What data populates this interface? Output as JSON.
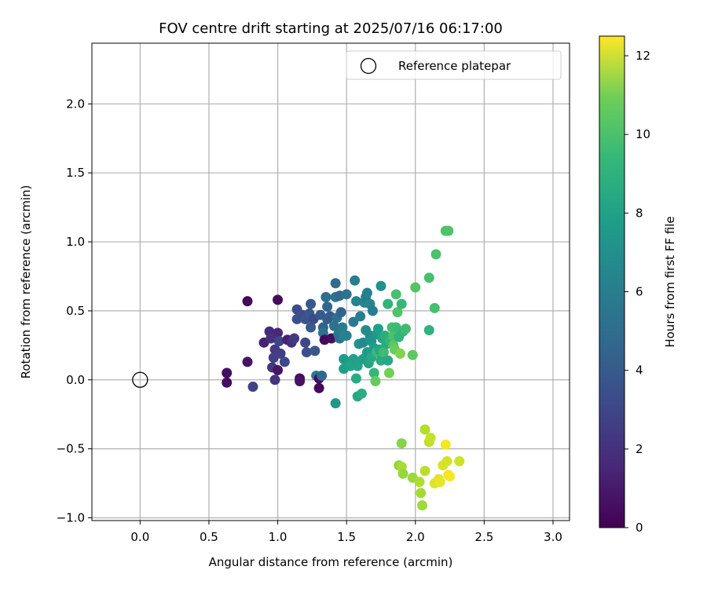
{
  "chart_data": {
    "type": "scatter",
    "title": "FOV centre drift starting at 2025/07/16 06:17:00",
    "xlabel": "Angular distance from reference (arcmin)",
    "ylabel": "Rotation from reference (arcmin)",
    "xlim": [
      -0.35,
      3.12
    ],
    "ylim": [
      -1.02,
      2.44
    ],
    "xticks": [
      0.0,
      0.5,
      1.0,
      1.5,
      2.0,
      2.5,
      3.0
    ],
    "xtick_labels": [
      "0.0",
      "0.5",
      "1.0",
      "1.5",
      "2.0",
      "2.5",
      "3.0"
    ],
    "yticks": [
      -1.0,
      -0.5,
      0.0,
      0.5,
      1.0,
      1.5,
      2.0
    ],
    "ytick_labels": [
      "−1.0",
      "−0.5",
      "0.0",
      "0.5",
      "1.0",
      "1.5",
      "2.0"
    ],
    "grid": true,
    "legend": {
      "position": "top-right",
      "entries": [
        "Reference platepar"
      ]
    },
    "reference_point": {
      "x": 0.0,
      "y": 0.0
    },
    "colorbar": {
      "label": "Hours from first FF file",
      "range": [
        0,
        12.5
      ],
      "ticks": [
        0,
        2,
        4,
        6,
        8,
        10,
        12
      ],
      "tick_labels": [
        "0",
        "2",
        "4",
        "6",
        "8",
        "10",
        "12"
      ],
      "colormap": "viridis"
    },
    "points": [
      {
        "x": 0.63,
        "y": 0.05,
        "h": 0.5
      },
      {
        "x": 0.63,
        "y": -0.02,
        "h": 0.4
      },
      {
        "x": 0.78,
        "y": 0.57,
        "h": 0.3
      },
      {
        "x": 0.78,
        "y": 0.13,
        "h": 0.6
      },
      {
        "x": 0.82,
        "y": -0.05,
        "h": 2.5
      },
      {
        "x": 0.9,
        "y": 0.27,
        "h": 1.2
      },
      {
        "x": 0.94,
        "y": 0.35,
        "h": 1.5
      },
      {
        "x": 0.95,
        "y": 0.3,
        "h": 1.8
      },
      {
        "x": 0.96,
        "y": 0.09,
        "h": 2.0
      },
      {
        "x": 0.97,
        "y": 0.16,
        "h": 2.3
      },
      {
        "x": 0.98,
        "y": 0.22,
        "h": 2.2
      },
      {
        "x": 0.98,
        "y": 0.0,
        "h": 1.9
      },
      {
        "x": 1.0,
        "y": 0.58,
        "h": 0.4
      },
      {
        "x": 1.0,
        "y": 0.34,
        "h": 1.4
      },
      {
        "x": 1.01,
        "y": 0.28,
        "h": 2.6
      },
      {
        "x": 1.02,
        "y": 0.19,
        "h": 2.4
      },
      {
        "x": 1.0,
        "y": 0.07,
        "h": 0.7
      },
      {
        "x": 1.05,
        "y": 0.13,
        "h": 2.8
      },
      {
        "x": 1.07,
        "y": 0.29,
        "h": 1.1
      },
      {
        "x": 1.1,
        "y": 0.27,
        "h": 1.7
      },
      {
        "x": 1.12,
        "y": 0.3,
        "h": 2.1
      },
      {
        "x": 1.14,
        "y": 0.44,
        "h": 3.2
      },
      {
        "x": 1.14,
        "y": 0.51,
        "h": 2.9
      },
      {
        "x": 1.16,
        "y": 0.01,
        "h": 0.5
      },
      {
        "x": 1.16,
        "y": -0.01,
        "h": 0.6
      },
      {
        "x": 1.18,
        "y": 0.47,
        "h": 3.0
      },
      {
        "x": 1.2,
        "y": 0.44,
        "h": 3.3
      },
      {
        "x": 1.2,
        "y": 0.27,
        "h": 2.7
      },
      {
        "x": 1.21,
        "y": 0.2,
        "h": 3.1
      },
      {
        "x": 1.23,
        "y": 0.48,
        "h": 3.4
      },
      {
        "x": 1.24,
        "y": 0.55,
        "h": 3.5
      },
      {
        "x": 1.24,
        "y": 0.38,
        "h": 3.6
      },
      {
        "x": 1.26,
        "y": 0.44,
        "h": 2.8
      },
      {
        "x": 1.27,
        "y": 0.21,
        "h": 3.4
      },
      {
        "x": 1.28,
        "y": 0.03,
        "h": 5.2
      },
      {
        "x": 1.3,
        "y": 0.01,
        "h": 0.5
      },
      {
        "x": 1.3,
        "y": -0.06,
        "h": 0.3
      },
      {
        "x": 1.31,
        "y": 0.47,
        "h": 3.5
      },
      {
        "x": 1.32,
        "y": 0.03,
        "h": 4.2
      },
      {
        "x": 1.33,
        "y": 0.38,
        "h": 3.9
      },
      {
        "x": 1.33,
        "y": 0.34,
        "h": 4.8
      },
      {
        "x": 1.34,
        "y": 0.29,
        "h": 0.4
      },
      {
        "x": 1.35,
        "y": 0.6,
        "h": 4.5
      },
      {
        "x": 1.36,
        "y": 0.53,
        "h": 4.1
      },
      {
        "x": 1.36,
        "y": 0.44,
        "h": 3.8
      },
      {
        "x": 1.38,
        "y": 0.46,
        "h": 3.6
      },
      {
        "x": 1.39,
        "y": 0.3,
        "h": 0.5
      },
      {
        "x": 1.41,
        "y": 0.39,
        "h": 4.7
      },
      {
        "x": 1.42,
        "y": 0.7,
        "h": 4.4
      },
      {
        "x": 1.42,
        "y": 0.6,
        "h": 4.9
      },
      {
        "x": 1.42,
        "y": -0.17,
        "h": 6.6
      },
      {
        "x": 1.43,
        "y": 0.45,
        "h": 4.6
      },
      {
        "x": 1.44,
        "y": 0.33,
        "h": 5.0
      },
      {
        "x": 1.45,
        "y": 0.61,
        "h": 4.3
      },
      {
        "x": 1.45,
        "y": 0.3,
        "h": 4.6
      },
      {
        "x": 1.46,
        "y": 0.49,
        "h": 4.0
      },
      {
        "x": 1.47,
        "y": 0.38,
        "h": 5.2
      },
      {
        "x": 1.48,
        "y": 0.32,
        "h": 5.5
      },
      {
        "x": 1.48,
        "y": 0.15,
        "h": 6.8
      },
      {
        "x": 1.48,
        "y": 0.08,
        "h": 7.0
      },
      {
        "x": 1.5,
        "y": 0.62,
        "h": 4.8
      },
      {
        "x": 1.5,
        "y": 0.32,
        "h": 5.6
      },
      {
        "x": 1.52,
        "y": 0.12,
        "h": 6.9
      },
      {
        "x": 1.53,
        "y": 0.1,
        "h": 7.2
      },
      {
        "x": 1.55,
        "y": 0.42,
        "h": 5.1
      },
      {
        "x": 1.55,
        "y": 0.15,
        "h": 7.1
      },
      {
        "x": 1.56,
        "y": 0.72,
        "h": 5.3
      },
      {
        "x": 1.57,
        "y": 0.57,
        "h": 5.7
      },
      {
        "x": 1.57,
        "y": 0.01,
        "h": 7.6
      },
      {
        "x": 1.58,
        "y": 0.1,
        "h": 7.3
      },
      {
        "x": 1.58,
        "y": -0.12,
        "h": 7.4
      },
      {
        "x": 1.59,
        "y": 0.26,
        "h": 6.4
      },
      {
        "x": 1.6,
        "y": 0.46,
        "h": 5.4
      },
      {
        "x": 1.61,
        "y": -0.1,
        "h": 7.8
      },
      {
        "x": 1.62,
        "y": 0.27,
        "h": 5.9
      },
      {
        "x": 1.62,
        "y": 0.15,
        "h": 7.0
      },
      {
        "x": 1.63,
        "y": 0.56,
        "h": 5.6
      },
      {
        "x": 1.64,
        "y": 0.36,
        "h": 6.1
      },
      {
        "x": 1.64,
        "y": 0.6,
        "h": 5.1
      },
      {
        "x": 1.65,
        "y": 0.63,
        "h": 5.5
      },
      {
        "x": 1.65,
        "y": 0.2,
        "h": 6.8
      },
      {
        "x": 1.66,
        "y": 0.12,
        "h": 7.2
      },
      {
        "x": 1.67,
        "y": 0.55,
        "h": 5.8
      },
      {
        "x": 1.67,
        "y": 0.32,
        "h": 6.0
      },
      {
        "x": 1.68,
        "y": 0.28,
        "h": 6.5
      },
      {
        "x": 1.68,
        "y": 0.16,
        "h": 7.5
      },
      {
        "x": 1.69,
        "y": 0.5,
        "h": 5.3
      },
      {
        "x": 1.7,
        "y": 0.05,
        "h": 8.2
      },
      {
        "x": 1.7,
        "y": 0.23,
        "h": 6.9
      },
      {
        "x": 1.71,
        "y": -0.01,
        "h": 9.5
      },
      {
        "x": 1.72,
        "y": 0.33,
        "h": 6.6
      },
      {
        "x": 1.72,
        "y": 0.2,
        "h": 8.4
      },
      {
        "x": 1.73,
        "y": 0.37,
        "h": 7.0
      },
      {
        "x": 1.74,
        "y": 0.22,
        "h": 7.4
      },
      {
        "x": 1.75,
        "y": 0.68,
        "h": 6.3
      },
      {
        "x": 1.75,
        "y": 0.14,
        "h": 7.6
      },
      {
        "x": 1.76,
        "y": 0.3,
        "h": 7.3
      },
      {
        "x": 1.77,
        "y": 0.2,
        "h": 8.6
      },
      {
        "x": 1.78,
        "y": 0.32,
        "h": 7.8
      },
      {
        "x": 1.79,
        "y": 0.26,
        "h": 7.7
      },
      {
        "x": 1.8,
        "y": 0.55,
        "h": 8.1
      },
      {
        "x": 1.8,
        "y": 0.14,
        "h": 7.5
      },
      {
        "x": 1.81,
        "y": 0.05,
        "h": 9.8
      },
      {
        "x": 1.82,
        "y": 0.28,
        "h": 8.3
      },
      {
        "x": 1.83,
        "y": 0.38,
        "h": 8.7
      },
      {
        "x": 1.84,
        "y": 0.32,
        "h": 8.9
      },
      {
        "x": 1.84,
        "y": 0.25,
        "h": 9.2
      },
      {
        "x": 1.85,
        "y": 0.22,
        "h": 9.6
      },
      {
        "x": 1.86,
        "y": 0.38,
        "h": 8.5
      },
      {
        "x": 1.86,
        "y": 0.62,
        "h": 8.8
      },
      {
        "x": 1.87,
        "y": 0.49,
        "h": 9.0
      },
      {
        "x": 1.88,
        "y": 0.31,
        "h": 8.1
      },
      {
        "x": 1.89,
        "y": 0.19,
        "h": 10.1
      },
      {
        "x": 1.9,
        "y": 0.55,
        "h": 8.4
      },
      {
        "x": 1.91,
        "y": 0.35,
        "h": 8.2
      },
      {
        "x": 1.93,
        "y": 0.37,
        "h": 8.6
      },
      {
        "x": 1.98,
        "y": 0.18,
        "h": 9.3
      },
      {
        "x": 2.0,
        "y": 0.67,
        "h": 9.1
      },
      {
        "x": 2.1,
        "y": 0.74,
        "h": 8.8
      },
      {
        "x": 2.1,
        "y": 0.36,
        "h": 8.0
      },
      {
        "x": 2.14,
        "y": 0.52,
        "h": 8.8
      },
      {
        "x": 2.15,
        "y": 0.91,
        "h": 8.9
      },
      {
        "x": 2.22,
        "y": 1.08,
        "h": 8.9
      },
      {
        "x": 2.24,
        "y": 1.08,
        "h": 9.0
      },
      {
        "x": 1.88,
        "y": -0.62,
        "h": 10.3
      },
      {
        "x": 1.9,
        "y": -0.46,
        "h": 10.2
      },
      {
        "x": 1.9,
        "y": -0.63,
        "h": 10.9
      },
      {
        "x": 1.91,
        "y": -0.68,
        "h": 10.5
      },
      {
        "x": 1.98,
        "y": -0.71,
        "h": 10.6
      },
      {
        "x": 2.03,
        "y": -0.74,
        "h": 11.0
      },
      {
        "x": 2.04,
        "y": -0.82,
        "h": 10.8
      },
      {
        "x": 2.05,
        "y": -0.91,
        "h": 10.7
      },
      {
        "x": 2.07,
        "y": -0.66,
        "h": 11.2
      },
      {
        "x": 2.07,
        "y": -0.36,
        "h": 11.1
      },
      {
        "x": 2.1,
        "y": -0.45,
        "h": 11.3
      },
      {
        "x": 2.11,
        "y": -0.42,
        "h": 11.4
      },
      {
        "x": 2.14,
        "y": -0.75,
        "h": 11.9
      },
      {
        "x": 2.17,
        "y": -0.72,
        "h": 12.0
      },
      {
        "x": 2.18,
        "y": -0.74,
        "h": 12.1
      },
      {
        "x": 2.2,
        "y": -0.62,
        "h": 11.8
      },
      {
        "x": 2.22,
        "y": -0.47,
        "h": 12.3
      },
      {
        "x": 2.23,
        "y": -0.59,
        "h": 11.7
      },
      {
        "x": 2.24,
        "y": -0.69,
        "h": 12.2
      },
      {
        "x": 2.25,
        "y": -0.7,
        "h": 12.4
      },
      {
        "x": 2.32,
        "y": -0.59,
        "h": 11.6
      }
    ]
  }
}
